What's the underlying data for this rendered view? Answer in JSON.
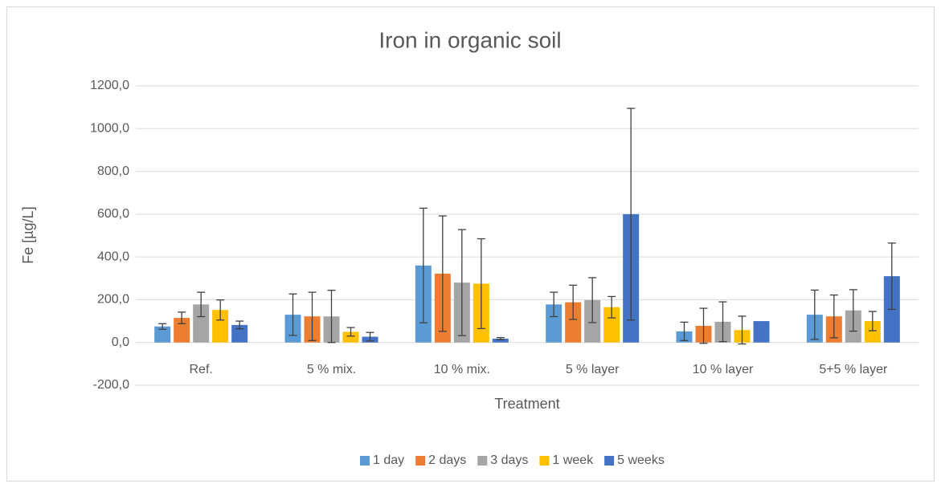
{
  "chart_data": {
    "type": "bar",
    "title": "Iron in organic soil",
    "x_label": "Treatment",
    "y_label": "Fe [µg/L]",
    "categories": [
      "Ref.",
      "5 % mix.",
      "10 % mix.",
      "5 % layer",
      "10 % layer",
      "5+5 % layer"
    ],
    "series": [
      {
        "name": "1 day",
        "color": "#5b9bd5",
        "values": [
          75,
          130,
          360,
          178,
          52,
          130
        ],
        "errors": [
          13,
          97,
          268,
          57,
          43,
          115
        ]
      },
      {
        "name": "2 days",
        "color": "#ed7d31",
        "values": [
          115,
          122,
          322,
          188,
          78,
          122
        ],
        "errors": [
          27,
          113,
          270,
          80,
          82,
          100
        ]
      },
      {
        "name": "3 days",
        "color": "#a5a5a5",
        "values": [
          178,
          122,
          280,
          198,
          97,
          150
        ],
        "errors": [
          57,
          122,
          248,
          105,
          93,
          97
        ]
      },
      {
        "name": "1 week",
        "color": "#ffc000",
        "values": [
          152,
          50,
          275,
          165,
          58,
          100
        ],
        "errors": [
          47,
          20,
          210,
          50,
          65,
          45
        ]
      },
      {
        "name": "5 weeks",
        "color": "#4472c4",
        "values": [
          82,
          27,
          18,
          600,
          100,
          310
        ],
        "errors": [
          18,
          20,
          5,
          495,
          0,
          155
        ]
      }
    ],
    "ylim": [
      -200,
      1200
    ],
    "yticks": [
      {
        "value": -200,
        "label": "-200,0"
      },
      {
        "value": 0,
        "label": "0,0"
      },
      {
        "value": 200,
        "label": "200,0"
      },
      {
        "value": 400,
        "label": "400,0"
      },
      {
        "value": 600,
        "label": "600,0"
      },
      {
        "value": 800,
        "label": "800,0"
      },
      {
        "value": 1000,
        "label": "1000,0"
      },
      {
        "value": 1200,
        "label": "1200,0"
      }
    ],
    "grid": true,
    "legend": "bottom"
  }
}
